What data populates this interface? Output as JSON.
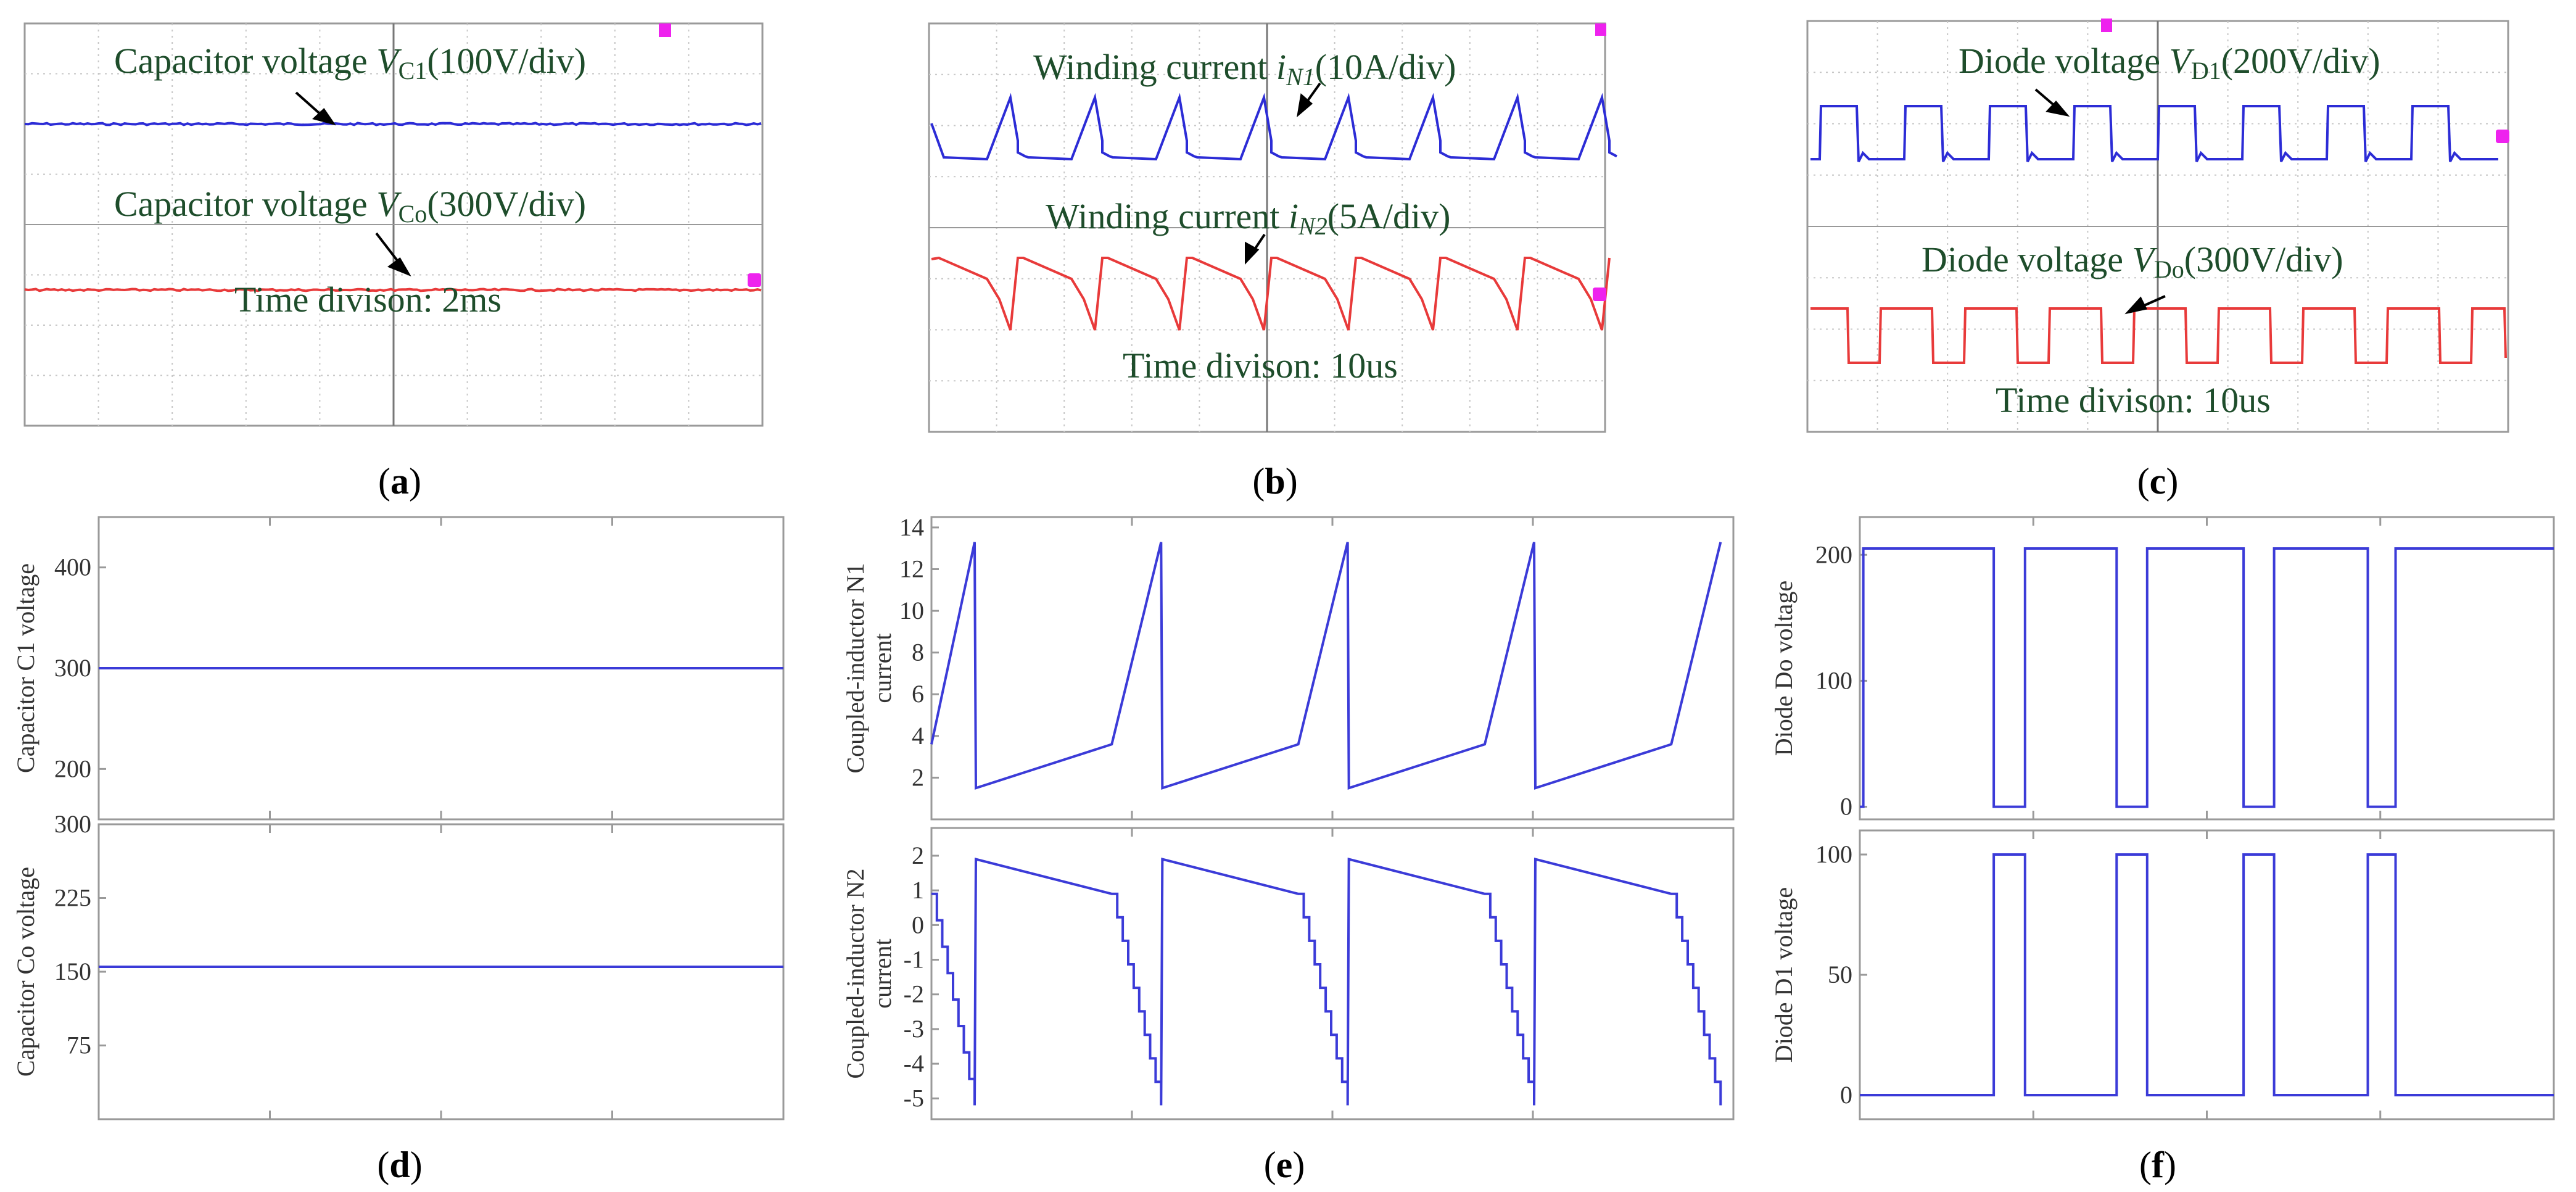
{
  "panel_labels": [
    "a",
    "b",
    "c",
    "d",
    "e",
    "f"
  ],
  "colors": {
    "blue": "#2c2cd6",
    "red": "#e83a3a",
    "sim": "#3b3bd8",
    "text": "#1e4d2b",
    "grid": "#c7c7c7"
  },
  "chart_data": [
    {
      "id": "a",
      "type": "line",
      "subtitle": "",
      "annotations": [
        {
          "prefix": "Capacitor voltage ",
          "var": "V",
          "sub": "C1",
          "suffix": "(100V/div)"
        },
        {
          "prefix": "Capacitor voltage ",
          "var": "V",
          "sub": "Co",
          "suffix": "(300V/div)"
        }
      ],
      "footer": "Time divison: 2ms",
      "series": [
        {
          "color": "blue",
          "level_div": 2.0
        },
        {
          "color": "red",
          "level_div": 5.3
        }
      ],
      "divisions": [
        10,
        8
      ]
    },
    {
      "id": "b",
      "type": "line",
      "annotations": [
        {
          "prefix": "Winding current ",
          "var": "i",
          "sub": "N1",
          "suffix": "(10A/div)"
        },
        {
          "prefix": "Winding current ",
          "var": "i",
          "sub": "N2",
          "suffix": "(5A/div)"
        }
      ],
      "footer": "Time divison: 10us",
      "series": [
        {
          "color": "blue",
          "shape": "ramp_up"
        },
        {
          "color": "red",
          "shape": "ramp_down"
        }
      ],
      "divisions": [
        10,
        8
      ]
    },
    {
      "id": "c",
      "type": "line",
      "annotations": [
        {
          "prefix": "Diode voltage ",
          "var": "V",
          "sub": "D1",
          "suffix": "(200V/div)"
        },
        {
          "prefix": "Diode voltage ",
          "var": "V",
          "sub": "Do",
          "suffix": "(300V/div)"
        }
      ],
      "footer": "Time divison: 10us",
      "series": [
        {
          "color": "blue",
          "shape": "pulse_up"
        },
        {
          "color": "red",
          "shape": "pulse_down"
        }
      ],
      "divisions": [
        10,
        8
      ]
    },
    {
      "id": "d",
      "type": "line",
      "subplots": [
        {
          "ylabel": "Capacitor C1 voltage",
          "ylim": [
            150,
            450
          ],
          "yticks": [
            200,
            300,
            400
          ],
          "value": 300
        },
        {
          "ylabel": "Capacitor Co voltage",
          "ylim": [
            0,
            300
          ],
          "yticks": [
            75,
            150,
            225,
            300
          ],
          "value": 155
        }
      ]
    },
    {
      "id": "e",
      "type": "line",
      "subplots": [
        {
          "ylabel": "Coupled-inductor N1 current",
          "ylim": [
            0,
            14.5
          ],
          "yticks": [
            2,
            4,
            6,
            8,
            10,
            12,
            14
          ],
          "periods": 4,
          "low": 1.5,
          "mid": 3.6,
          "high": 13.3
        },
        {
          "ylabel": "Coupled-inductor N2 current",
          "ylim": [
            -5.6,
            2.8
          ],
          "yticks": [
            -5,
            -4,
            -3,
            -2,
            -1,
            0,
            1,
            2
          ],
          "periods": 4,
          "high": 1.9,
          "mid": 0.9,
          "low": -5.2
        }
      ]
    },
    {
      "id": "f",
      "type": "line",
      "subplots": [
        {
          "ylabel": "Diode Do voltage",
          "ylim": [
            -10,
            230
          ],
          "yticks": [
            0,
            100,
            200
          ],
          "high": 205,
          "low": 0
        },
        {
          "ylabel": "Diode D1  voltage",
          "ylim": [
            -10,
            110
          ],
          "yticks": [
            0,
            50,
            100
          ],
          "high": 100,
          "low": 0
        }
      ]
    }
  ]
}
